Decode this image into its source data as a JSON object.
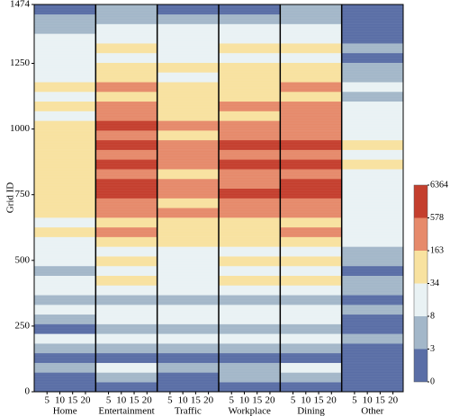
{
  "chart_data": {
    "type": "heatmap",
    "y_label": "Grid ID",
    "ylim": [
      0,
      1474
    ],
    "yticks": [
      0,
      250,
      500,
      750,
      1000,
      1250,
      1474
    ],
    "xlim": [
      0,
      24
    ],
    "xticks": [
      5,
      10,
      15,
      20
    ],
    "colorbar": {
      "ticks": [
        0,
        3,
        8,
        34,
        163,
        578,
        6364
      ],
      "colors": [
        "#5a6ea6",
        "#a3b7c9",
        "#e9f2f4",
        "#f8e2a0",
        "#e68a6b",
        "#c43f2e"
      ]
    },
    "panels": [
      {
        "name": "Home",
        "values": [
          1,
          2,
          5,
          1,
          4,
          10,
          2,
          6,
          12,
          3,
          8,
          15,
          5,
          20,
          10,
          30,
          40,
          25,
          60,
          35,
          80,
          50,
          40,
          90,
          60,
          120,
          45,
          70,
          30,
          50,
          20,
          35,
          15,
          25,
          10,
          20,
          8,
          6,
          3,
          2
        ]
      },
      {
        "name": "Entertainment",
        "values": [
          1,
          3,
          8,
          2,
          6,
          20,
          4,
          12,
          30,
          6,
          20,
          40,
          15,
          50,
          30,
          100,
          180,
          120,
          400,
          300,
          700,
          650,
          300,
          800,
          500,
          900,
          350,
          600,
          200,
          400,
          120,
          200,
          60,
          100,
          30,
          60,
          20,
          15,
          5,
          3
        ]
      },
      {
        "name": "Traffic",
        "values": [
          1,
          2,
          6,
          1,
          5,
          12,
          3,
          8,
          20,
          4,
          12,
          25,
          8,
          30,
          15,
          60,
          90,
          50,
          200,
          120,
          300,
          250,
          100,
          350,
          200,
          400,
          120,
          250,
          80,
          150,
          50,
          80,
          25,
          40,
          15,
          30,
          10,
          8,
          3,
          2
        ]
      },
      {
        "name": "Workplace",
        "values": [
          1,
          3,
          7,
          2,
          6,
          18,
          4,
          10,
          25,
          5,
          18,
          35,
          12,
          45,
          25,
          90,
          150,
          100,
          350,
          250,
          600,
          500,
          250,
          650,
          400,
          700,
          300,
          500,
          150,
          300,
          100,
          160,
          50,
          80,
          25,
          50,
          15,
          12,
          4,
          2
        ]
      },
      {
        "name": "Dining",
        "values": [
          1,
          3,
          8,
          2,
          6,
          20,
          4,
          12,
          28,
          6,
          20,
          40,
          14,
          48,
          28,
          95,
          170,
          110,
          380,
          280,
          680,
          600,
          280,
          750,
          450,
          850,
          320,
          550,
          180,
          350,
          110,
          180,
          55,
          90,
          28,
          55,
          18,
          14,
          5,
          3
        ]
      },
      {
        "name": "Other",
        "values": [
          0,
          1,
          2,
          0,
          1,
          3,
          1,
          2,
          4,
          1,
          3,
          5,
          2,
          6,
          3,
          10,
          15,
          8,
          20,
          12,
          30,
          25,
          10,
          35,
          20,
          40,
          12,
          25,
          8,
          15,
          5,
          8,
          3,
          5,
          2,
          3,
          2,
          1,
          1,
          0
        ]
      }
    ]
  }
}
